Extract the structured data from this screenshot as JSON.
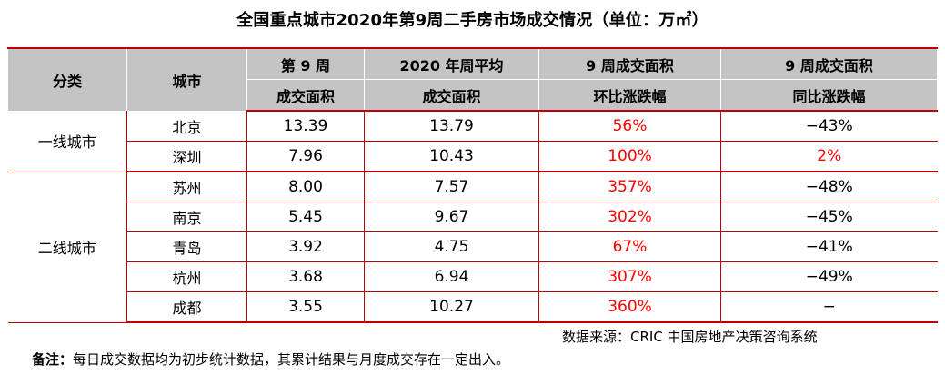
{
  "title": "全国重点城市2020年第9周二手房市场成交情况（单位：万㎡）",
  "headers": {
    "category": "分类",
    "city": "城市",
    "week9_top": "第 9 周",
    "week9_bottom": "成交面积",
    "avg_top": "2020 年周平均",
    "avg_bottom": "成交面积",
    "mom_top": "9 周成交面积",
    "mom_bottom": "环比涨跌幅",
    "yoy_top": "9 周成交面积",
    "yoy_bottom": "同比涨跌幅"
  },
  "groups": [
    {
      "category": "一线城市",
      "rows": [
        {
          "city": "北京",
          "week9": "13.39",
          "avg": "13.79",
          "mom": "56%",
          "yoy": "−43%",
          "yoy_up": false
        },
        {
          "city": "深圳",
          "week9": "7.96",
          "avg": "10.43",
          "mom": "100%",
          "yoy": "2%",
          "yoy_up": true
        }
      ]
    },
    {
      "category": "二线城市",
      "rows": [
        {
          "city": "苏州",
          "week9": "8.00",
          "avg": "7.57",
          "mom": "357%",
          "yoy": "−48%",
          "yoy_up": false
        },
        {
          "city": "南京",
          "week9": "5.45",
          "avg": "9.67",
          "mom": "302%",
          "yoy": "−45%",
          "yoy_up": false
        },
        {
          "city": "青岛",
          "week9": "3.92",
          "avg": "4.75",
          "mom": "67%",
          "yoy": "−41%",
          "yoy_up": false
        },
        {
          "city": "杭州",
          "week9": "3.68",
          "avg": "6.94",
          "mom": "307%",
          "yoy": "−49%",
          "yoy_up": false
        },
        {
          "city": "成都",
          "week9": "3.55",
          "avg": "10.27",
          "mom": "360%",
          "yoy": "−",
          "yoy_up": false
        }
      ]
    }
  ],
  "source": "数据来源：CRIC 中国房地产决策咨询系统",
  "note_label": "备注：",
  "note_text": "每日成交数据均为初步统计数据，其累计结果与月度成交存在一定出入。",
  "colors": {
    "increase": "#ff0000",
    "rule": "#c00000",
    "header_bg": "#c4c4c4"
  }
}
